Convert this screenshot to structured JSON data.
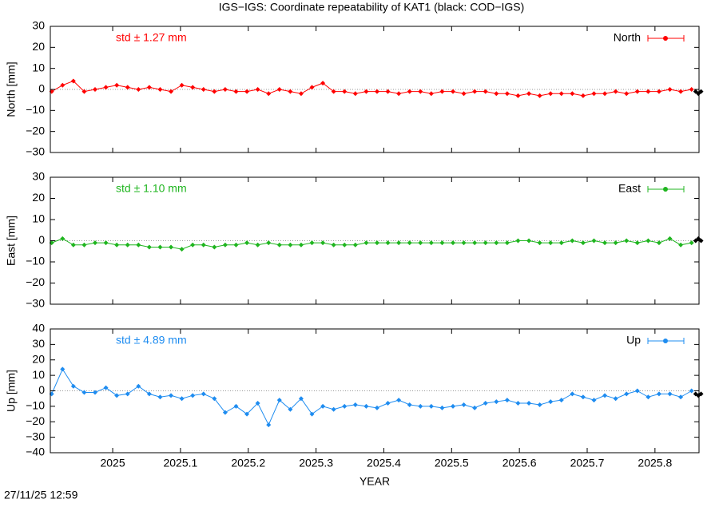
{
  "title": "IGS−IGS: Coordinate repeatability of KAT1 (black: COD−IGS)",
  "timestamp": "27/11/25 12:59",
  "chart_data": [
    {
      "type": "line",
      "ylabel": "North [mm]",
      "annotation": "std ± 1.27 mm",
      "xlim": [
        2024.908,
        2025.865
      ],
      "xticks": [
        2025,
        2025.1,
        2025.2,
        2025.3,
        2025.4,
        2025.5,
        2025.6,
        2025.7,
        2025.8
      ],
      "xtick_labels": false,
      "ylim": [
        -30,
        30
      ],
      "yticks": [
        30,
        20,
        10,
        0,
        {
          "value": -10,
          "label": "−10"
        },
        {
          "value": -20,
          "label": "−20"
        },
        {
          "value": -30,
          "label": "−30"
        }
      ],
      "legend": "upper right",
      "series": [
        {
          "name": "North",
          "color": "#ff0000",
          "x": [
            2024.91,
            2024.926,
            2024.942,
            2024.958,
            2024.974,
            2024.99,
            2025.006,
            2025.022,
            2025.038,
            2025.054,
            2025.07,
            2025.086,
            2025.102,
            2025.118,
            2025.134,
            2025.15,
            2025.166,
            2025.182,
            2025.198,
            2025.214,
            2025.23,
            2025.246,
            2025.262,
            2025.278,
            2025.294,
            2025.31,
            2025.326,
            2025.342,
            2025.358,
            2025.374,
            2025.39,
            2025.406,
            2025.422,
            2025.438,
            2025.454,
            2025.47,
            2025.486,
            2025.502,
            2025.518,
            2025.534,
            2025.55,
            2025.566,
            2025.582,
            2025.598,
            2025.614,
            2025.63,
            2025.646,
            2025.662,
            2025.678,
            2025.694,
            2025.71,
            2025.726,
            2025.742,
            2025.758,
            2025.774,
            2025.79,
            2025.806,
            2025.822,
            2025.838,
            2025.854
          ],
          "values": [
            -1,
            2,
            4,
            -1,
            0,
            1,
            2,
            1,
            0,
            1,
            0,
            -1,
            2,
            1,
            0,
            -1,
            0,
            -1,
            -1,
            0,
            -2,
            0,
            -1,
            -2,
            1,
            3,
            -1,
            -1,
            -2,
            -1,
            -1,
            -1,
            -2,
            -1,
            -1,
            -2,
            -1,
            -1,
            -2,
            -1,
            -1,
            -2,
            -2,
            -3,
            -2,
            -3,
            -2,
            -2,
            -2,
            -3,
            -2,
            -2,
            -1,
            -2,
            -1,
            -1,
            -1,
            0,
            -1,
            0
          ]
        },
        {
          "color": "#000000",
          "x": [
            2025.86,
            2025.864,
            2025.868
          ],
          "values": [
            -1,
            -2,
            -1
          ]
        }
      ]
    },
    {
      "type": "line",
      "ylabel": "East [mm]",
      "annotation": "std ± 1.10 mm",
      "xlim": [
        2024.908,
        2025.865
      ],
      "xticks": [
        2025,
        2025.1,
        2025.2,
        2025.3,
        2025.4,
        2025.5,
        2025.6,
        2025.7,
        2025.8
      ],
      "xtick_labels": false,
      "ylim": [
        -30,
        30
      ],
      "yticks": [
        30,
        20,
        10,
        0,
        {
          "value": -10,
          "label": "−10"
        },
        {
          "value": -20,
          "label": "−20"
        },
        {
          "value": -30,
          "label": "−30"
        }
      ],
      "legend": "upper right",
      "series": [
        {
          "name": "East",
          "color": "#1fb51f",
          "x": [
            2024.91,
            2024.926,
            2024.942,
            2024.958,
            2024.974,
            2024.99,
            2025.006,
            2025.022,
            2025.038,
            2025.054,
            2025.07,
            2025.086,
            2025.102,
            2025.118,
            2025.134,
            2025.15,
            2025.166,
            2025.182,
            2025.198,
            2025.214,
            2025.23,
            2025.246,
            2025.262,
            2025.278,
            2025.294,
            2025.31,
            2025.326,
            2025.342,
            2025.358,
            2025.374,
            2025.39,
            2025.406,
            2025.422,
            2025.438,
            2025.454,
            2025.47,
            2025.486,
            2025.502,
            2025.518,
            2025.534,
            2025.55,
            2025.566,
            2025.582,
            2025.598,
            2025.614,
            2025.63,
            2025.646,
            2025.662,
            2025.678,
            2025.694,
            2025.71,
            2025.726,
            2025.742,
            2025.758,
            2025.774,
            2025.79,
            2025.806,
            2025.822,
            2025.838,
            2025.854
          ],
          "values": [
            -1,
            1,
            -2,
            -2,
            -1,
            -1,
            -2,
            -2,
            -2,
            -3,
            -3,
            -3,
            -4,
            -2,
            -2,
            -3,
            -2,
            -2,
            -1,
            -2,
            -1,
            -2,
            -2,
            -2,
            -1,
            -1,
            -2,
            -2,
            -2,
            -1,
            -1,
            -1,
            -1,
            -1,
            -1,
            -1,
            -1,
            -1,
            -1,
            -1,
            -1,
            -1,
            -1,
            0,
            0,
            -1,
            -1,
            -1,
            0,
            -1,
            0,
            -1,
            -1,
            0,
            -1,
            0,
            -1,
            1,
            -2,
            -1
          ]
        },
        {
          "color": "#000000",
          "x": [
            2025.86,
            2025.864,
            2025.868
          ],
          "values": [
            0,
            1,
            0
          ]
        }
      ]
    },
    {
      "type": "line",
      "ylabel": "Up [mm]",
      "annotation": "std ± 4.89 mm",
      "xlabel": "YEAR",
      "xlim": [
        2024.908,
        2025.865
      ],
      "xticks": [
        2025,
        2025.1,
        2025.2,
        2025.3,
        2025.4,
        2025.5,
        2025.6,
        2025.7,
        2025.8
      ],
      "xtick_labels": true,
      "ylim": [
        -40,
        40
      ],
      "yticks": [
        40,
        30,
        20,
        10,
        0,
        {
          "value": -10,
          "label": "−10"
        },
        {
          "value": -20,
          "label": "−20"
        },
        {
          "value": -30,
          "label": "−30"
        },
        {
          "value": -40,
          "label": "−40"
        }
      ],
      "legend": "upper right",
      "series": [
        {
          "name": "Up",
          "color": "#1e8cf0",
          "x": [
            2024.91,
            2024.926,
            2024.942,
            2024.958,
            2024.974,
            2024.99,
            2025.006,
            2025.022,
            2025.038,
            2025.054,
            2025.07,
            2025.086,
            2025.102,
            2025.118,
            2025.134,
            2025.15,
            2025.166,
            2025.182,
            2025.198,
            2025.214,
            2025.23,
            2025.246,
            2025.262,
            2025.278,
            2025.294,
            2025.31,
            2025.326,
            2025.342,
            2025.358,
            2025.374,
            2025.39,
            2025.406,
            2025.422,
            2025.438,
            2025.454,
            2025.47,
            2025.486,
            2025.502,
            2025.518,
            2025.534,
            2025.55,
            2025.566,
            2025.582,
            2025.598,
            2025.614,
            2025.63,
            2025.646,
            2025.662,
            2025.678,
            2025.694,
            2025.71,
            2025.726,
            2025.742,
            2025.758,
            2025.774,
            2025.79,
            2025.806,
            2025.822,
            2025.838,
            2025.854
          ],
          "values": [
            -2,
            14,
            3,
            -1,
            -1,
            2,
            -3,
            -2,
            3,
            -2,
            -4,
            -3,
            -5,
            -3,
            -2,
            -5,
            -14,
            -10,
            -15,
            -8,
            -22,
            -6,
            -12,
            -5,
            -15,
            -10,
            -12,
            -10,
            -9,
            -10,
            -11,
            -8,
            -6,
            -9,
            -10,
            -10,
            -11,
            -10,
            -9,
            -11,
            -8,
            -7,
            -6,
            -8,
            -8,
            -9,
            -7,
            -6,
            -2,
            -4,
            -6,
            -3,
            -5,
            -2,
            0,
            -4,
            -2,
            -2,
            -4,
            0
          ]
        },
        {
          "color": "#000000",
          "x": [
            2025.86,
            2025.864,
            2025.868
          ],
          "values": [
            -2,
            -3,
            -2
          ]
        }
      ]
    }
  ]
}
